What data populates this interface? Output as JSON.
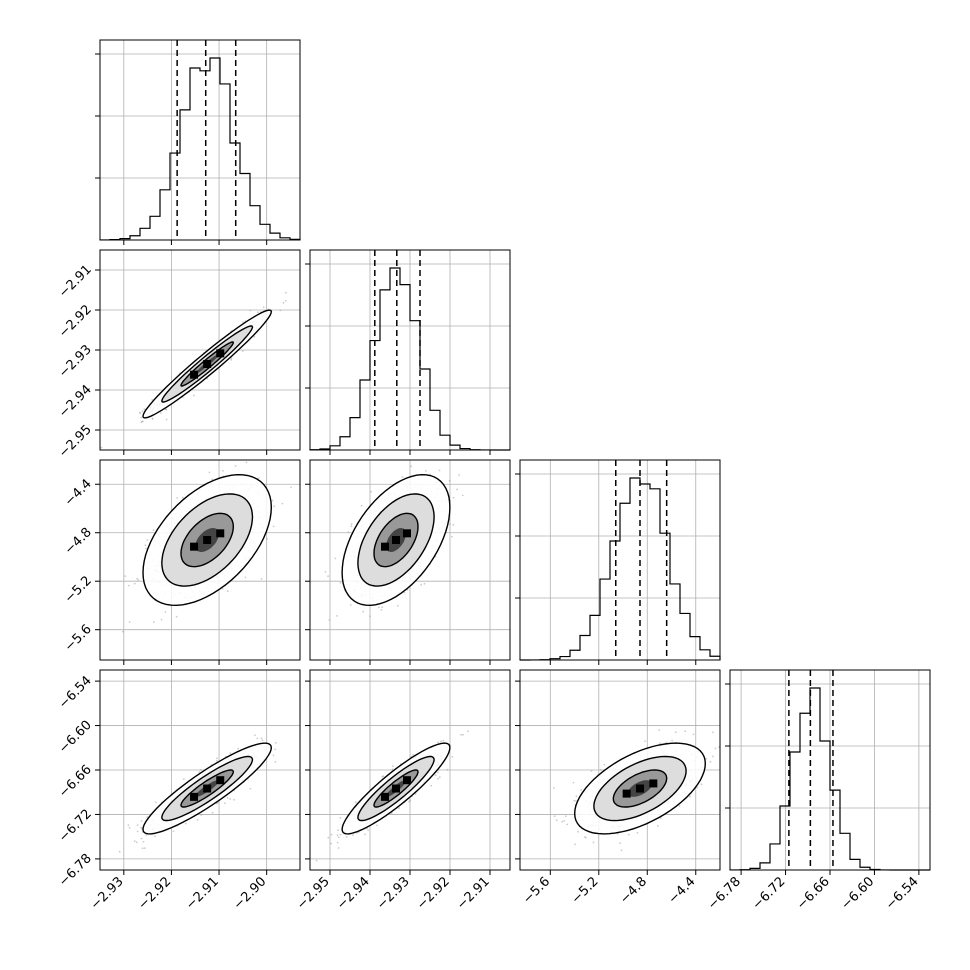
{
  "chart_data": {
    "type": "corner",
    "description_free": true,
    "parameters": [
      {
        "range": [
          -2.935,
          -2.893
        ],
        "ticks": [
          -2.93,
          -2.92,
          -2.91,
          -2.9
        ],
        "tick_labels": [
          "−2.93",
          "−2.92",
          "−2.91",
          "−2.90"
        ],
        "mean": -2.9125,
        "sigma": 0.0055,
        "quantiles": [
          -2.9188,
          -2.9128,
          -2.9065
        ]
      },
      {
        "range": [
          -2.955,
          -2.905
        ],
        "ticks": [
          -2.95,
          -2.94,
          -2.93,
          -2.92,
          -2.91
        ],
        "tick_labels": [
          "−2.95",
          "−2.94",
          "−2.93",
          "−2.92",
          "−2.91"
        ],
        "mean": -2.9335,
        "sigma": 0.0055,
        "quantiles": [
          -2.9388,
          -2.9333,
          -2.9275
        ]
      },
      {
        "range": [
          -5.85,
          -4.2
        ],
        "ticks": [
          -5.6,
          -5.2,
          -4.8,
          -4.4
        ],
        "tick_labels": [
          "−5.6",
          "−5.2",
          "−4.8",
          "−4.4"
        ],
        "mean": -4.86,
        "sigma": 0.22,
        "quantiles": [
          -5.06,
          -4.86,
          -4.64
        ]
      },
      {
        "range": [
          -6.795,
          -6.525
        ],
        "ticks": [
          -6.78,
          -6.72,
          -6.66,
          -6.6,
          -6.54
        ],
        "tick_labels": [
          "−6.78",
          "−6.72",
          "−6.66",
          "−6.60",
          "−6.54"
        ],
        "mean": -6.685,
        "sigma": 0.025,
        "quantiles": [
          -6.7155,
          -6.6865,
          -6.656
        ]
      }
    ],
    "correlations": [
      [
        1.0,
        0.97,
        0.5,
        0.9
      ],
      [
        0.97,
        1.0,
        0.5,
        0.9
      ],
      [
        0.5,
        0.5,
        1.0,
        0.55
      ],
      [
        0.9,
        0.9,
        0.55,
        1.0
      ]
    ],
    "grid": true,
    "title": "",
    "xlabel": "",
    "ylabel": ""
  }
}
